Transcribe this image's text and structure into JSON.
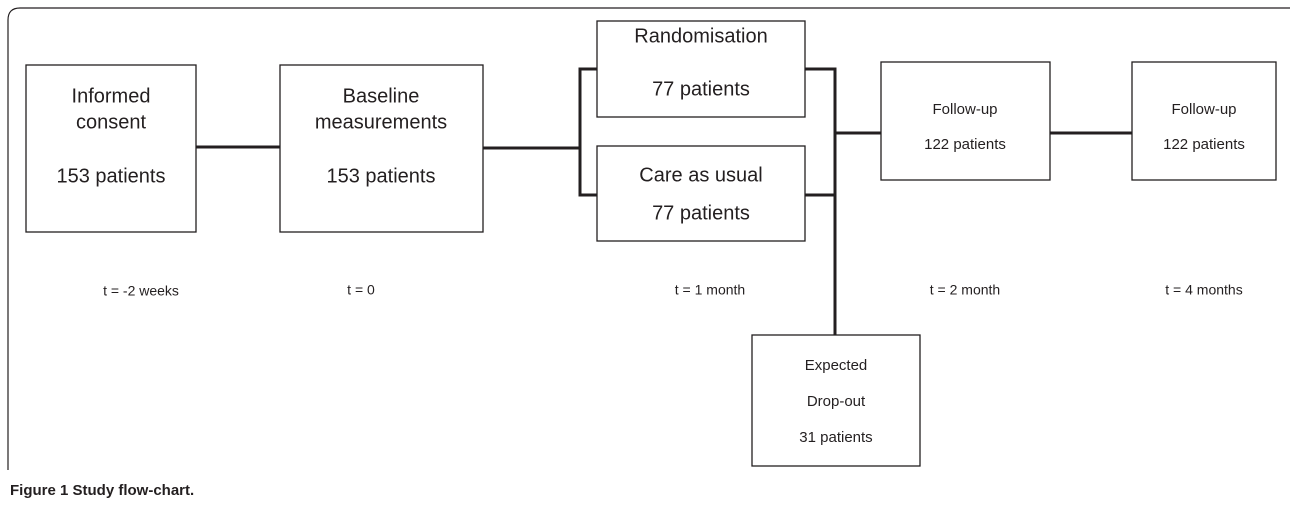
{
  "nodes": [
    {
      "lines": [
        "Informed",
        "consent",
        "153 patients"
      ]
    },
    {
      "lines": [
        "Baseline",
        "measurements",
        "153 patients"
      ]
    },
    {
      "lines": [
        "Randomisation",
        "77 patients"
      ]
    },
    {
      "lines": [
        "Care as usual",
        "77 patients"
      ]
    },
    {
      "lines": [
        "Follow-up",
        "122 patients"
      ]
    },
    {
      "lines": [
        "Follow-up",
        "122 patients"
      ]
    },
    {
      "lines": [
        "Expected",
        "Drop-out",
        "31 patients"
      ]
    }
  ],
  "timeline": [
    "t = -2 weeks",
    "t = 0",
    "t = 1 month",
    "t = 2 month",
    "t = 4 months"
  ],
  "caption": "Figure 1 Study flow-chart."
}
